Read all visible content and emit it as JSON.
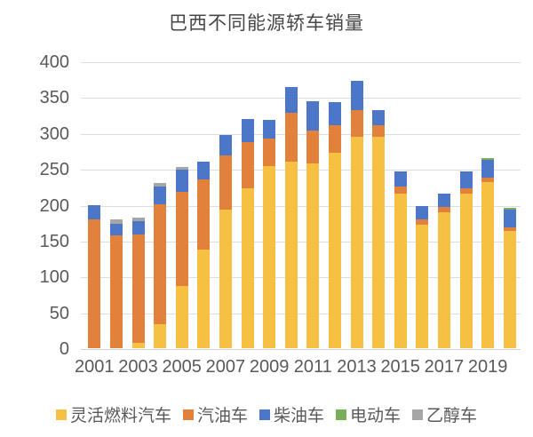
{
  "title": "巴西不同能源轿车销量",
  "chart_data": {
    "type": "bar",
    "stacked": true,
    "title": "巴西不同能源轿车销量",
    "x": [
      2001,
      2002,
      2003,
      2004,
      2005,
      2006,
      2007,
      2008,
      2009,
      2010,
      2011,
      2012,
      2013,
      2014,
      2015,
      2016,
      2017,
      2018,
      2019,
      2020
    ],
    "x_tick_labels": [
      "2001",
      "2003",
      "2005",
      "2007",
      "2009",
      "2011",
      "2013",
      "2015",
      "2017",
      "2019"
    ],
    "series": [
      {
        "name": "灵活燃料汽车",
        "color": "#F6C142",
        "values": [
          0,
          0,
          7,
          33,
          87,
          137,
          193,
          223,
          254,
          260,
          258,
          272,
          295,
          295,
          216,
          172,
          190,
          216,
          232,
          164
        ]
      },
      {
        "name": "汽油车",
        "color": "#E2813C",
        "values": [
          180,
          157,
          152,
          168,
          131,
          98,
          76,
          64,
          38,
          68,
          46,
          39,
          37,
          16,
          10,
          7,
          7,
          7,
          6,
          5
        ]
      },
      {
        "name": "柴油车",
        "color": "#4C77C9",
        "values": [
          20,
          17,
          18,
          24,
          31,
          25,
          28,
          33,
          26,
          36,
          40,
          32,
          41,
          21,
          21,
          19,
          19,
          23,
          24,
          24
        ]
      },
      {
        "name": "电动车",
        "color": "#79AE58",
        "values": [
          0,
          0,
          0,
          0,
          0,
          0,
          0,
          0,
          0,
          0,
          0,
          0,
          0,
          0,
          0,
          0,
          0,
          0,
          3,
          3
        ]
      },
      {
        "name": "乙醇车",
        "color": "#A6A6A6",
        "values": [
          0,
          5,
          5,
          5,
          4,
          0,
          0,
          0,
          0,
          0,
          0,
          0,
          0,
          0,
          0,
          0,
          0,
          0,
          0,
          0
        ]
      }
    ],
    "ylim": [
      0,
      400
    ],
    "ytick_interval": 50,
    "ytick_labels": [
      "0",
      "50",
      "100",
      "150",
      "200",
      "250",
      "300",
      "350",
      "400"
    ],
    "grid": true,
    "legend_position": "bottom",
    "axis_label_color": "#595959",
    "grid_color": "#dcdcdc"
  }
}
